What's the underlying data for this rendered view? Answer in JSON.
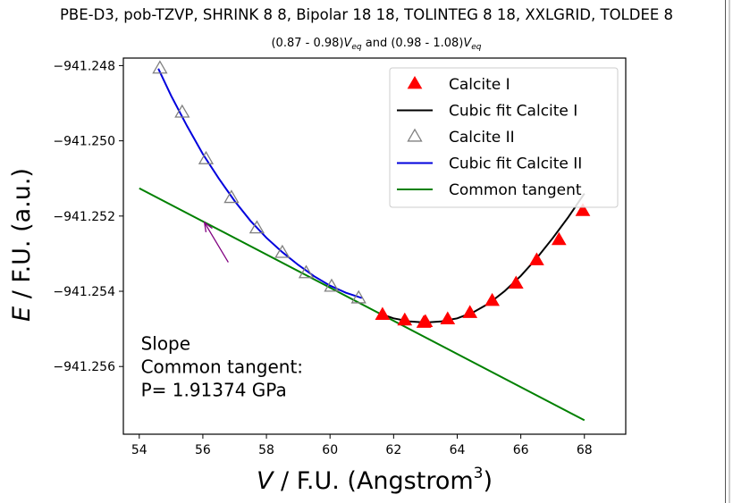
{
  "chart_data": {
    "type": "scatter",
    "title": "PBE-D3, pob-TZVP, SHRINK 8 8, Bipolar 18 18, TOLINTEG 8 18, XXLGRID, TOLDEE 8",
    "subtitle": {
      "prefix": "(0.87 - 0.98)",
      "v1": "V",
      "sub1": "eq",
      "middle": " and (0.98 - 1.08)",
      "v2": "V",
      "sub2": "eq"
    },
    "xlabel": {
      "italic": "V",
      "rest": " / F.U. (Angstrom",
      "sup": "3",
      "close": ")"
    },
    "ylabel": {
      "italic": "E",
      "rest": " / F.U. (a.u.)"
    },
    "xlim": [
      53.5,
      69.3
    ],
    "ylim": [
      -941.2578,
      -941.2478
    ],
    "xticks": [
      54,
      56,
      58,
      60,
      62,
      64,
      66,
      68
    ],
    "xtick_labels": [
      "54",
      "56",
      "58",
      "60",
      "62",
      "64",
      "66",
      "68"
    ],
    "yticks": [
      -941.248,
      -941.25,
      -941.252,
      -941.254,
      -941.256
    ],
    "ytick_labels": [
      "−941.248",
      "−941.250",
      "−941.252",
      "−941.254",
      "−941.256"
    ],
    "legend_position": "upper right",
    "series": [
      {
        "name": "Calcite I",
        "kind": "scatter",
        "marker": "filled-triangle",
        "color": "#ff0000",
        "x": [
          61.65,
          62.35,
          62.95,
          63.0,
          63.7,
          64.4,
          65.1,
          65.85,
          66.5,
          67.2,
          67.95
        ],
        "y": [
          -941.25463,
          -941.25478,
          -941.25484,
          -941.25482,
          -941.25475,
          -941.25458,
          -941.25426,
          -941.2538,
          -941.25318,
          -941.25264,
          -941.25187
        ]
      },
      {
        "name": "Cubic fit Calcite I",
        "kind": "line",
        "color": "#000000",
        "x": [
          61.65,
          62.0,
          62.5,
          63.0,
          63.5,
          64.0,
          64.5,
          65.0,
          65.5,
          66.0,
          66.5,
          67.0,
          67.5,
          68.0
        ],
        "y": [
          -941.25462,
          -941.25472,
          -941.2548,
          -941.25483,
          -941.2548,
          -941.25472,
          -941.25456,
          -941.25432,
          -941.25399,
          -941.25359,
          -941.25312,
          -941.25259,
          -941.25202,
          -941.2514
        ]
      },
      {
        "name": "Calcite II",
        "kind": "scatter",
        "marker": "open-triangle",
        "color": "#808080",
        "x": [
          54.65,
          55.35,
          56.1,
          56.9,
          57.7,
          58.5,
          59.25,
          60.05,
          60.9
        ],
        "y": [
          -941.24808,
          -941.24925,
          -941.25049,
          -941.25152,
          -941.25233,
          -941.25298,
          -941.25352,
          -941.25388,
          -941.25419
        ]
      },
      {
        "name": "Cubic fit Calcite II",
        "kind": "line",
        "color": "#0000dd",
        "x": [
          54.6,
          55.0,
          55.5,
          56.0,
          56.5,
          57.0,
          57.5,
          58.0,
          58.5,
          59.0,
          59.5,
          60.0,
          60.5,
          61.0
        ],
        "y": [
          -941.24808,
          -941.2488,
          -941.2496,
          -941.25035,
          -941.251,
          -941.2516,
          -941.25213,
          -941.25258,
          -941.25296,
          -941.2533,
          -941.2536,
          -941.25385,
          -941.25404,
          -941.25418
        ]
      },
      {
        "name": "Common tangent",
        "kind": "line",
        "color": "#008000",
        "x": [
          54.0,
          68.0
        ],
        "y": [
          -941.25126,
          -941.25743
        ]
      }
    ],
    "annotation": {
      "lines": [
        "Slope",
        "Common tangent:",
        "P= 1.91374 GPa"
      ],
      "text_x": 54.05,
      "text_y": -941.25556,
      "arrow_from": [
        56.8,
        -941.25323
      ],
      "arrow_to": [
        56.05,
        -941.25217
      ],
      "arrow_color": "#800080"
    }
  }
}
